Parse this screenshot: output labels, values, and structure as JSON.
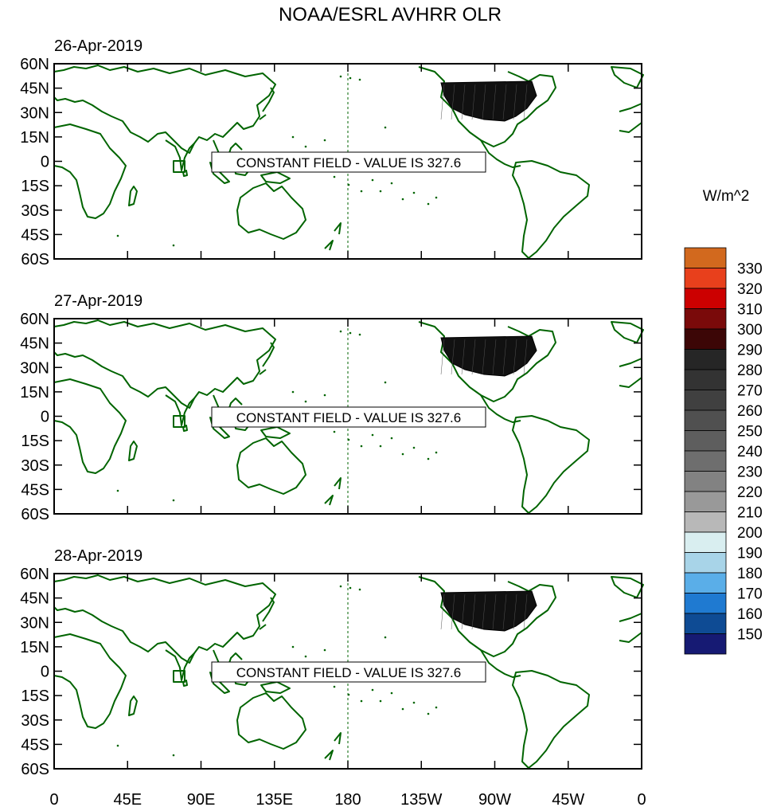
{
  "title": "NOAA/ESRL AVHRR OLR",
  "panels": [
    {
      "date": "26-Apr-2019",
      "note": "CONSTANT FIELD - VALUE IS 327.6"
    },
    {
      "date": "27-Apr-2019",
      "note": "CONSTANT FIELD - VALUE IS 327.6"
    },
    {
      "date": "28-Apr-2019",
      "note": "CONSTANT FIELD - VALUE IS 327.6"
    }
  ],
  "lat_labels": [
    "60N",
    "45N",
    "30N",
    "15N",
    "0",
    "15S",
    "30S",
    "45S",
    "60S"
  ],
  "lon_labels": [
    "0",
    "45E",
    "90E",
    "135E",
    "180",
    "135W",
    "90W",
    "45W",
    "0"
  ],
  "colorbar": {
    "units": "W/m^2",
    "labels": [
      "330",
      "320",
      "310",
      "300",
      "290",
      "280",
      "270",
      "260",
      "250",
      "240",
      "230",
      "220",
      "210",
      "200",
      "190",
      "180",
      "170",
      "160",
      "150"
    ],
    "colors_top_to_bottom": [
      "#d2691e",
      "#e8401c",
      "#cc0000",
      "#7a0a0a",
      "#3c0606",
      "#262626",
      "#333333",
      "#404040",
      "#505050",
      "#5e5e5e",
      "#6e6e6e",
      "#828282",
      "#999999",
      "#b8b8b8",
      "#d9eef0",
      "#a8d4e8",
      "#5aaee8",
      "#1f7ad1",
      "#0e4b94",
      "#161a73"
    ]
  },
  "style": {
    "coast_color": "#006400",
    "land_dense_color": "#111111"
  }
}
